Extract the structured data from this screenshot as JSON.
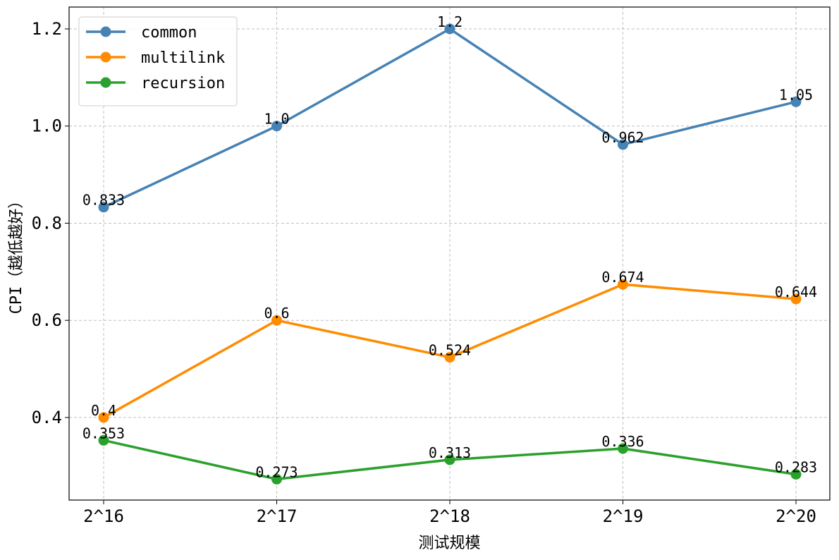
{
  "chart_data": {
    "type": "line",
    "title": "",
    "xlabel": "测试规模",
    "ylabel": "CPI（越低越好）",
    "categories": [
      "2^16",
      "2^17",
      "2^18",
      "2^19",
      "2^20"
    ],
    "yticks": [
      "0.4",
      "0.6",
      "0.8",
      "1.0",
      "1.2"
    ],
    "ylim": [
      0.23,
      1.245
    ],
    "grid": true,
    "legend_position": "top-left",
    "series": [
      {
        "name": "common",
        "color": "#4682b4",
        "values": [
          0.833,
          1.0,
          1.2,
          0.962,
          1.05
        ],
        "labels": [
          "0.833",
          "1.0",
          "1.2",
          "0.962",
          "1.05"
        ]
      },
      {
        "name": "multilink",
        "color": "#ff8c00",
        "values": [
          0.4,
          0.6,
          0.524,
          0.674,
          0.644
        ],
        "labels": [
          "0.4",
          "0.6",
          "0.524",
          "0.674",
          "0.644"
        ]
      },
      {
        "name": "recursion",
        "color": "#2ca02c",
        "values": [
          0.353,
          0.273,
          0.313,
          0.336,
          0.283
        ],
        "labels": [
          "0.353",
          "0.273",
          "0.313",
          "0.336",
          "0.283"
        ]
      }
    ]
  }
}
